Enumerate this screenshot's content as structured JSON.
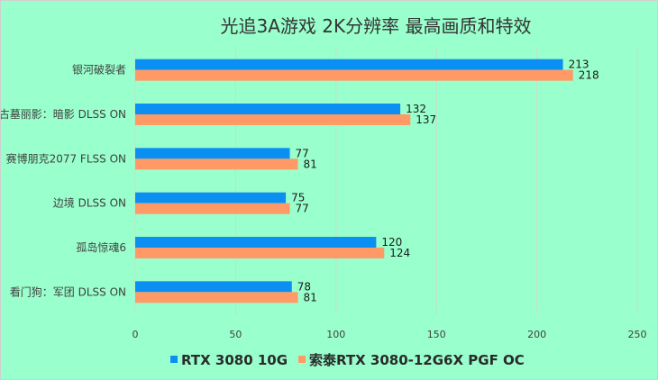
{
  "chart_data": {
    "type": "bar",
    "orientation": "horizontal",
    "title": "光追3A游戏 2K分辨率 最高画质和特效",
    "categories": [
      "银河破裂者",
      "古墓丽影：暗影 DLSS ON",
      "赛博朋克2077 FLSS ON",
      "边境 DLSS ON",
      "孤岛惊魂6",
      "看门狗：军团 DLSS ON"
    ],
    "series": [
      {
        "name": "RTX 3080 10G",
        "color": "#0b8ff2",
        "values": [
          213,
          132,
          77,
          75,
          120,
          78
        ]
      },
      {
        "name": "索泰RTX 3080-12G6X PGF OC",
        "color": "#ff9966",
        "values": [
          218,
          137,
          81,
          77,
          124,
          81
        ]
      }
    ],
    "xlim": [
      0,
      250
    ],
    "xticks": [
      0,
      50,
      100,
      150,
      200,
      250
    ],
    "grid": true,
    "legend_position": "bottom",
    "data_labels": true
  }
}
